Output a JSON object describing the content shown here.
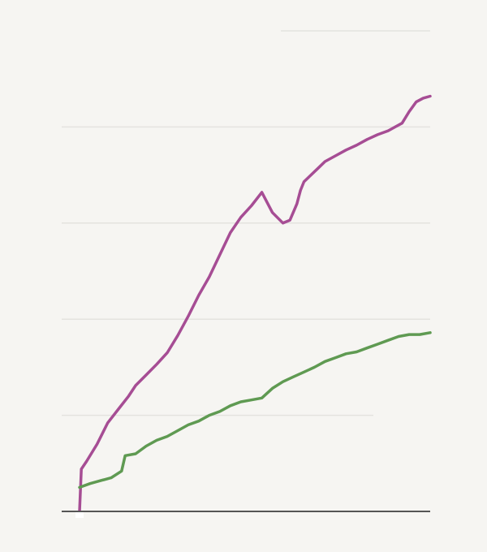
{
  "colors": {
    "background": "#f6f5f2",
    "gridline": "#e4e3df",
    "baseline": "#555555",
    "tick_marker": "#ffffff"
  },
  "chart_data": {
    "type": "line",
    "title": "",
    "xlabel": "",
    "ylabel": "",
    "grid": true,
    "legend": "none",
    "xlim": [
      0,
      100
    ],
    "ylim": [
      0,
      500
    ],
    "gridline_values": [
      100,
      200,
      300,
      400,
      500
    ],
    "series": [
      {
        "color": "#a64d94",
        "x": [
          0,
          0.5,
          2,
          5,
          8,
          11,
          14,
          16,
          19,
          22,
          25,
          28,
          31,
          34,
          37,
          40,
          43,
          46,
          49,
          52,
          55,
          58,
          60,
          62,
          63,
          64,
          66,
          68,
          70,
          73,
          76,
          79,
          82,
          85,
          88,
          90,
          92,
          94,
          96,
          98,
          100
        ],
        "values": [
          0,
          44,
          52,
          70,
          92,
          106,
          120,
          131,
          142,
          153,
          165,
          183,
          203,
          225,
          244,
          267,
          290,
          306,
          318,
          332,
          311,
          300,
          303,
          320,
          334,
          343,
          350,
          357,
          364,
          370,
          376,
          381,
          387,
          392,
          396,
          400,
          404,
          416,
          426,
          430,
          432
        ]
      },
      {
        "color": "#5f9a52",
        "x": [
          0,
          3,
          6,
          9,
          12,
          13,
          16,
          19,
          22,
          25,
          28,
          31,
          34,
          37,
          40,
          43,
          46,
          49,
          52,
          55,
          58,
          61,
          64,
          67,
          70,
          73,
          76,
          79,
          82,
          85,
          88,
          91,
          94,
          97,
          100
        ],
        "values": [
          25,
          29,
          32,
          35,
          42,
          58,
          60,
          68,
          74,
          78,
          84,
          90,
          94,
          100,
          104,
          110,
          114,
          116,
          118,
          128,
          135,
          140,
          145,
          150,
          156,
          160,
          164,
          166,
          170,
          174,
          178,
          182,
          184,
          184,
          186
        ]
      }
    ]
  }
}
